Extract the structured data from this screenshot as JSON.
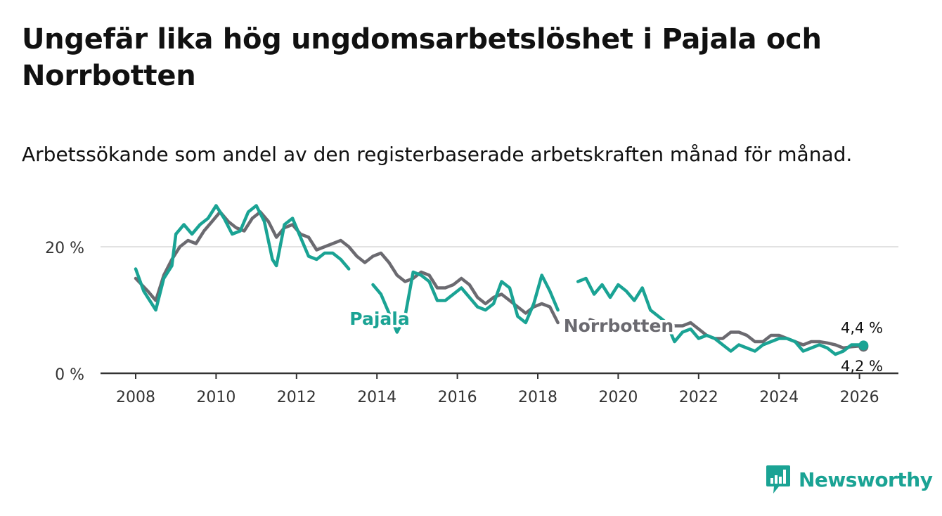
{
  "title": "Ungefär lika hög ungdomsarbetslöshet i Pajala och Norrbotten",
  "subtitle": "Arbetssökande som andel av den registerbaserade arbetskraften månad för månad.",
  "brand": {
    "name": "Newsworthy",
    "color": "#1aa394",
    "icon": "bar-chart-speech-icon"
  },
  "chart_data": {
    "type": "line",
    "title": "Ungefär lika hög ungdomsarbetslöshet i Pajala och Norrbotten",
    "xlabel": "",
    "ylabel": "",
    "xlim": [
      2007.5,
      2027.0
    ],
    "ylim": [
      0,
      30
    ],
    "grid": true,
    "y_ticks": [
      {
        "value": 0,
        "label": "0 %"
      },
      {
        "value": 20,
        "label": "20 %"
      }
    ],
    "x_ticks": [
      {
        "value": 2008,
        "label": "2008"
      },
      {
        "value": 2010,
        "label": "2010"
      },
      {
        "value": 2012,
        "label": "2012"
      },
      {
        "value": 2014,
        "label": "2014"
      },
      {
        "value": 2016,
        "label": "2016"
      },
      {
        "value": 2018,
        "label": "2018"
      },
      {
        "value": 2020,
        "label": "2020"
      },
      {
        "value": 2022,
        "label": "2022"
      },
      {
        "value": 2024,
        "label": "2024"
      },
      {
        "value": 2026,
        "label": "2026"
      }
    ],
    "series": [
      {
        "name": "Norrbotten",
        "label": "Norrbotten",
        "color": "#6b6a70",
        "end_label": "4,2 %",
        "points": [
          [
            2008.0,
            15.0
          ],
          [
            2008.3,
            13.0
          ],
          [
            2008.5,
            11.5
          ],
          [
            2008.7,
            15.5
          ],
          [
            2008.9,
            18.0
          ],
          [
            2009.1,
            20.0
          ],
          [
            2009.3,
            21.0
          ],
          [
            2009.5,
            20.5
          ],
          [
            2009.7,
            22.5
          ],
          [
            2009.9,
            24.0
          ],
          [
            2010.1,
            25.5
          ],
          [
            2010.3,
            24.0
          ],
          [
            2010.5,
            23.0
          ],
          [
            2010.7,
            22.5
          ],
          [
            2010.9,
            24.5
          ],
          [
            2011.1,
            25.5
          ],
          [
            2011.3,
            24.0
          ],
          [
            2011.5,
            21.5
          ],
          [
            2011.7,
            23.0
          ],
          [
            2011.9,
            23.5
          ],
          [
            2012.1,
            22.0
          ],
          [
            2012.3,
            21.5
          ],
          [
            2012.5,
            19.5
          ],
          [
            2012.7,
            20.0
          ],
          [
            2012.9,
            20.5
          ],
          [
            2013.1,
            21.0
          ],
          [
            2013.3,
            20.0
          ],
          [
            2013.5,
            18.5
          ],
          [
            2013.7,
            17.5
          ],
          [
            2013.9,
            18.5
          ],
          [
            2014.1,
            19.0
          ],
          [
            2014.3,
            17.5
          ],
          [
            2014.5,
            15.5
          ],
          [
            2014.7,
            14.5
          ],
          [
            2014.9,
            15.0
          ],
          [
            2015.1,
            16.0
          ],
          [
            2015.3,
            15.5
          ],
          [
            2015.5,
            13.5
          ],
          [
            2015.7,
            13.5
          ],
          [
            2015.9,
            14.0
          ],
          [
            2016.1,
            15.0
          ],
          [
            2016.3,
            14.0
          ],
          [
            2016.5,
            12.0
          ],
          [
            2016.7,
            11.0
          ],
          [
            2016.9,
            12.0
          ],
          [
            2017.1,
            12.5
          ],
          [
            2017.3,
            11.5
          ],
          [
            2017.5,
            10.5
          ],
          [
            2017.7,
            9.5
          ],
          [
            2017.9,
            10.5
          ],
          [
            2018.1,
            11.0
          ],
          [
            2018.3,
            10.5
          ],
          [
            2018.5,
            8.0
          ],
          [
            2019.3,
            8.5
          ],
          [
            2019.5,
            8.0
          ],
          [
            2021.2,
            8.0
          ],
          [
            2021.4,
            7.5
          ],
          [
            2021.6,
            7.5
          ],
          [
            2021.8,
            8.0
          ],
          [
            2022.0,
            7.0
          ],
          [
            2022.2,
            6.0
          ],
          [
            2022.4,
            5.5
          ],
          [
            2022.6,
            5.5
          ],
          [
            2022.8,
            6.5
          ],
          [
            2023.0,
            6.5
          ],
          [
            2023.2,
            6.0
          ],
          [
            2023.4,
            5.0
          ],
          [
            2023.6,
            5.0
          ],
          [
            2023.8,
            6.0
          ],
          [
            2024.0,
            6.0
          ],
          [
            2024.2,
            5.5
          ],
          [
            2024.4,
            5.0
          ],
          [
            2024.6,
            4.5
          ],
          [
            2024.8,
            5.0
          ],
          [
            2025.0,
            5.0
          ],
          [
            2025.2,
            4.8
          ],
          [
            2025.4,
            4.5
          ],
          [
            2025.6,
            4.0
          ],
          [
            2025.8,
            4.2
          ],
          [
            2026.0,
            4.3
          ],
          [
            2026.1,
            4.2
          ]
        ]
      },
      {
        "name": "Pajala",
        "label": "Pajala",
        "color": "#1aa394",
        "end_label": "4,4 %",
        "points": [
          [
            2008.0,
            16.5
          ],
          [
            2008.2,
            13.0
          ],
          [
            2008.4,
            11.0
          ],
          [
            2008.5,
            10.0
          ],
          [
            2008.7,
            15.0
          ],
          [
            2008.9,
            17.0
          ],
          [
            2009.0,
            22.0
          ],
          [
            2009.2,
            23.5
          ],
          [
            2009.4,
            22.0
          ],
          [
            2009.6,
            23.5
          ],
          [
            2009.8,
            24.5
          ],
          [
            2010.0,
            26.5
          ],
          [
            2010.2,
            24.5
          ],
          [
            2010.4,
            22.0
          ],
          [
            2010.6,
            22.5
          ],
          [
            2010.8,
            25.5
          ],
          [
            2011.0,
            26.5
          ],
          [
            2011.2,
            24.0
          ],
          [
            2011.4,
            18.0
          ],
          [
            2011.5,
            17.0
          ],
          [
            2011.7,
            23.5
          ],
          [
            2011.9,
            24.5
          ],
          [
            2012.1,
            21.5
          ],
          [
            2012.3,
            18.5
          ],
          [
            2012.5,
            18.0
          ],
          [
            2012.7,
            19.0
          ],
          [
            2012.9,
            19.0
          ],
          [
            2013.1,
            18.0
          ],
          [
            2013.3,
            16.5
          ],
          [
            2013.9,
            14.0
          ],
          [
            2014.1,
            12.5
          ],
          [
            2014.3,
            9.5
          ],
          [
            2014.5,
            6.5
          ],
          [
            2014.7,
            9.0
          ],
          [
            2014.9,
            16.0
          ],
          [
            2015.1,
            15.5
          ],
          [
            2015.3,
            14.5
          ],
          [
            2015.5,
            11.5
          ],
          [
            2015.7,
            11.5
          ],
          [
            2015.9,
            12.5
          ],
          [
            2016.1,
            13.5
          ],
          [
            2016.3,
            12.0
          ],
          [
            2016.5,
            10.5
          ],
          [
            2016.7,
            10.0
          ],
          [
            2016.9,
            11.0
          ],
          [
            2017.1,
            14.5
          ],
          [
            2017.3,
            13.5
          ],
          [
            2017.5,
            9.0
          ],
          [
            2017.7,
            8.0
          ],
          [
            2017.9,
            11.0
          ],
          [
            2018.1,
            15.5
          ],
          [
            2018.3,
            13.0
          ],
          [
            2018.5,
            10.0
          ],
          [
            2019.0,
            14.5
          ],
          [
            2019.2,
            15.0
          ],
          [
            2019.4,
            12.5
          ],
          [
            2019.6,
            14.0
          ],
          [
            2019.8,
            12.0
          ],
          [
            2020.0,
            14.0
          ],
          [
            2020.2,
            13.0
          ],
          [
            2020.4,
            11.5
          ],
          [
            2020.6,
            13.5
          ],
          [
            2020.8,
            10.0
          ],
          [
            2021.0,
            9.0
          ],
          [
            2021.2,
            8.0
          ],
          [
            2021.4,
            5.0
          ],
          [
            2021.6,
            6.5
          ],
          [
            2021.8,
            7.0
          ],
          [
            2022.0,
            5.5
          ],
          [
            2022.2,
            6.0
          ],
          [
            2022.4,
            5.5
          ],
          [
            2022.6,
            4.5
          ],
          [
            2022.8,
            3.5
          ],
          [
            2023.0,
            4.5
          ],
          [
            2023.2,
            4.0
          ],
          [
            2023.4,
            3.5
          ],
          [
            2023.6,
            4.5
          ],
          [
            2023.8,
            5.0
          ],
          [
            2024.0,
            5.5
          ],
          [
            2024.2,
            5.5
          ],
          [
            2024.4,
            5.0
          ],
          [
            2024.6,
            3.5
          ],
          [
            2024.8,
            4.0
          ],
          [
            2025.0,
            4.5
          ],
          [
            2025.2,
            4.0
          ],
          [
            2025.4,
            3.0
          ],
          [
            2025.6,
            3.5
          ],
          [
            2025.8,
            4.5
          ],
          [
            2026.0,
            4.5
          ],
          [
            2026.1,
            4.4
          ]
        ]
      }
    ]
  }
}
